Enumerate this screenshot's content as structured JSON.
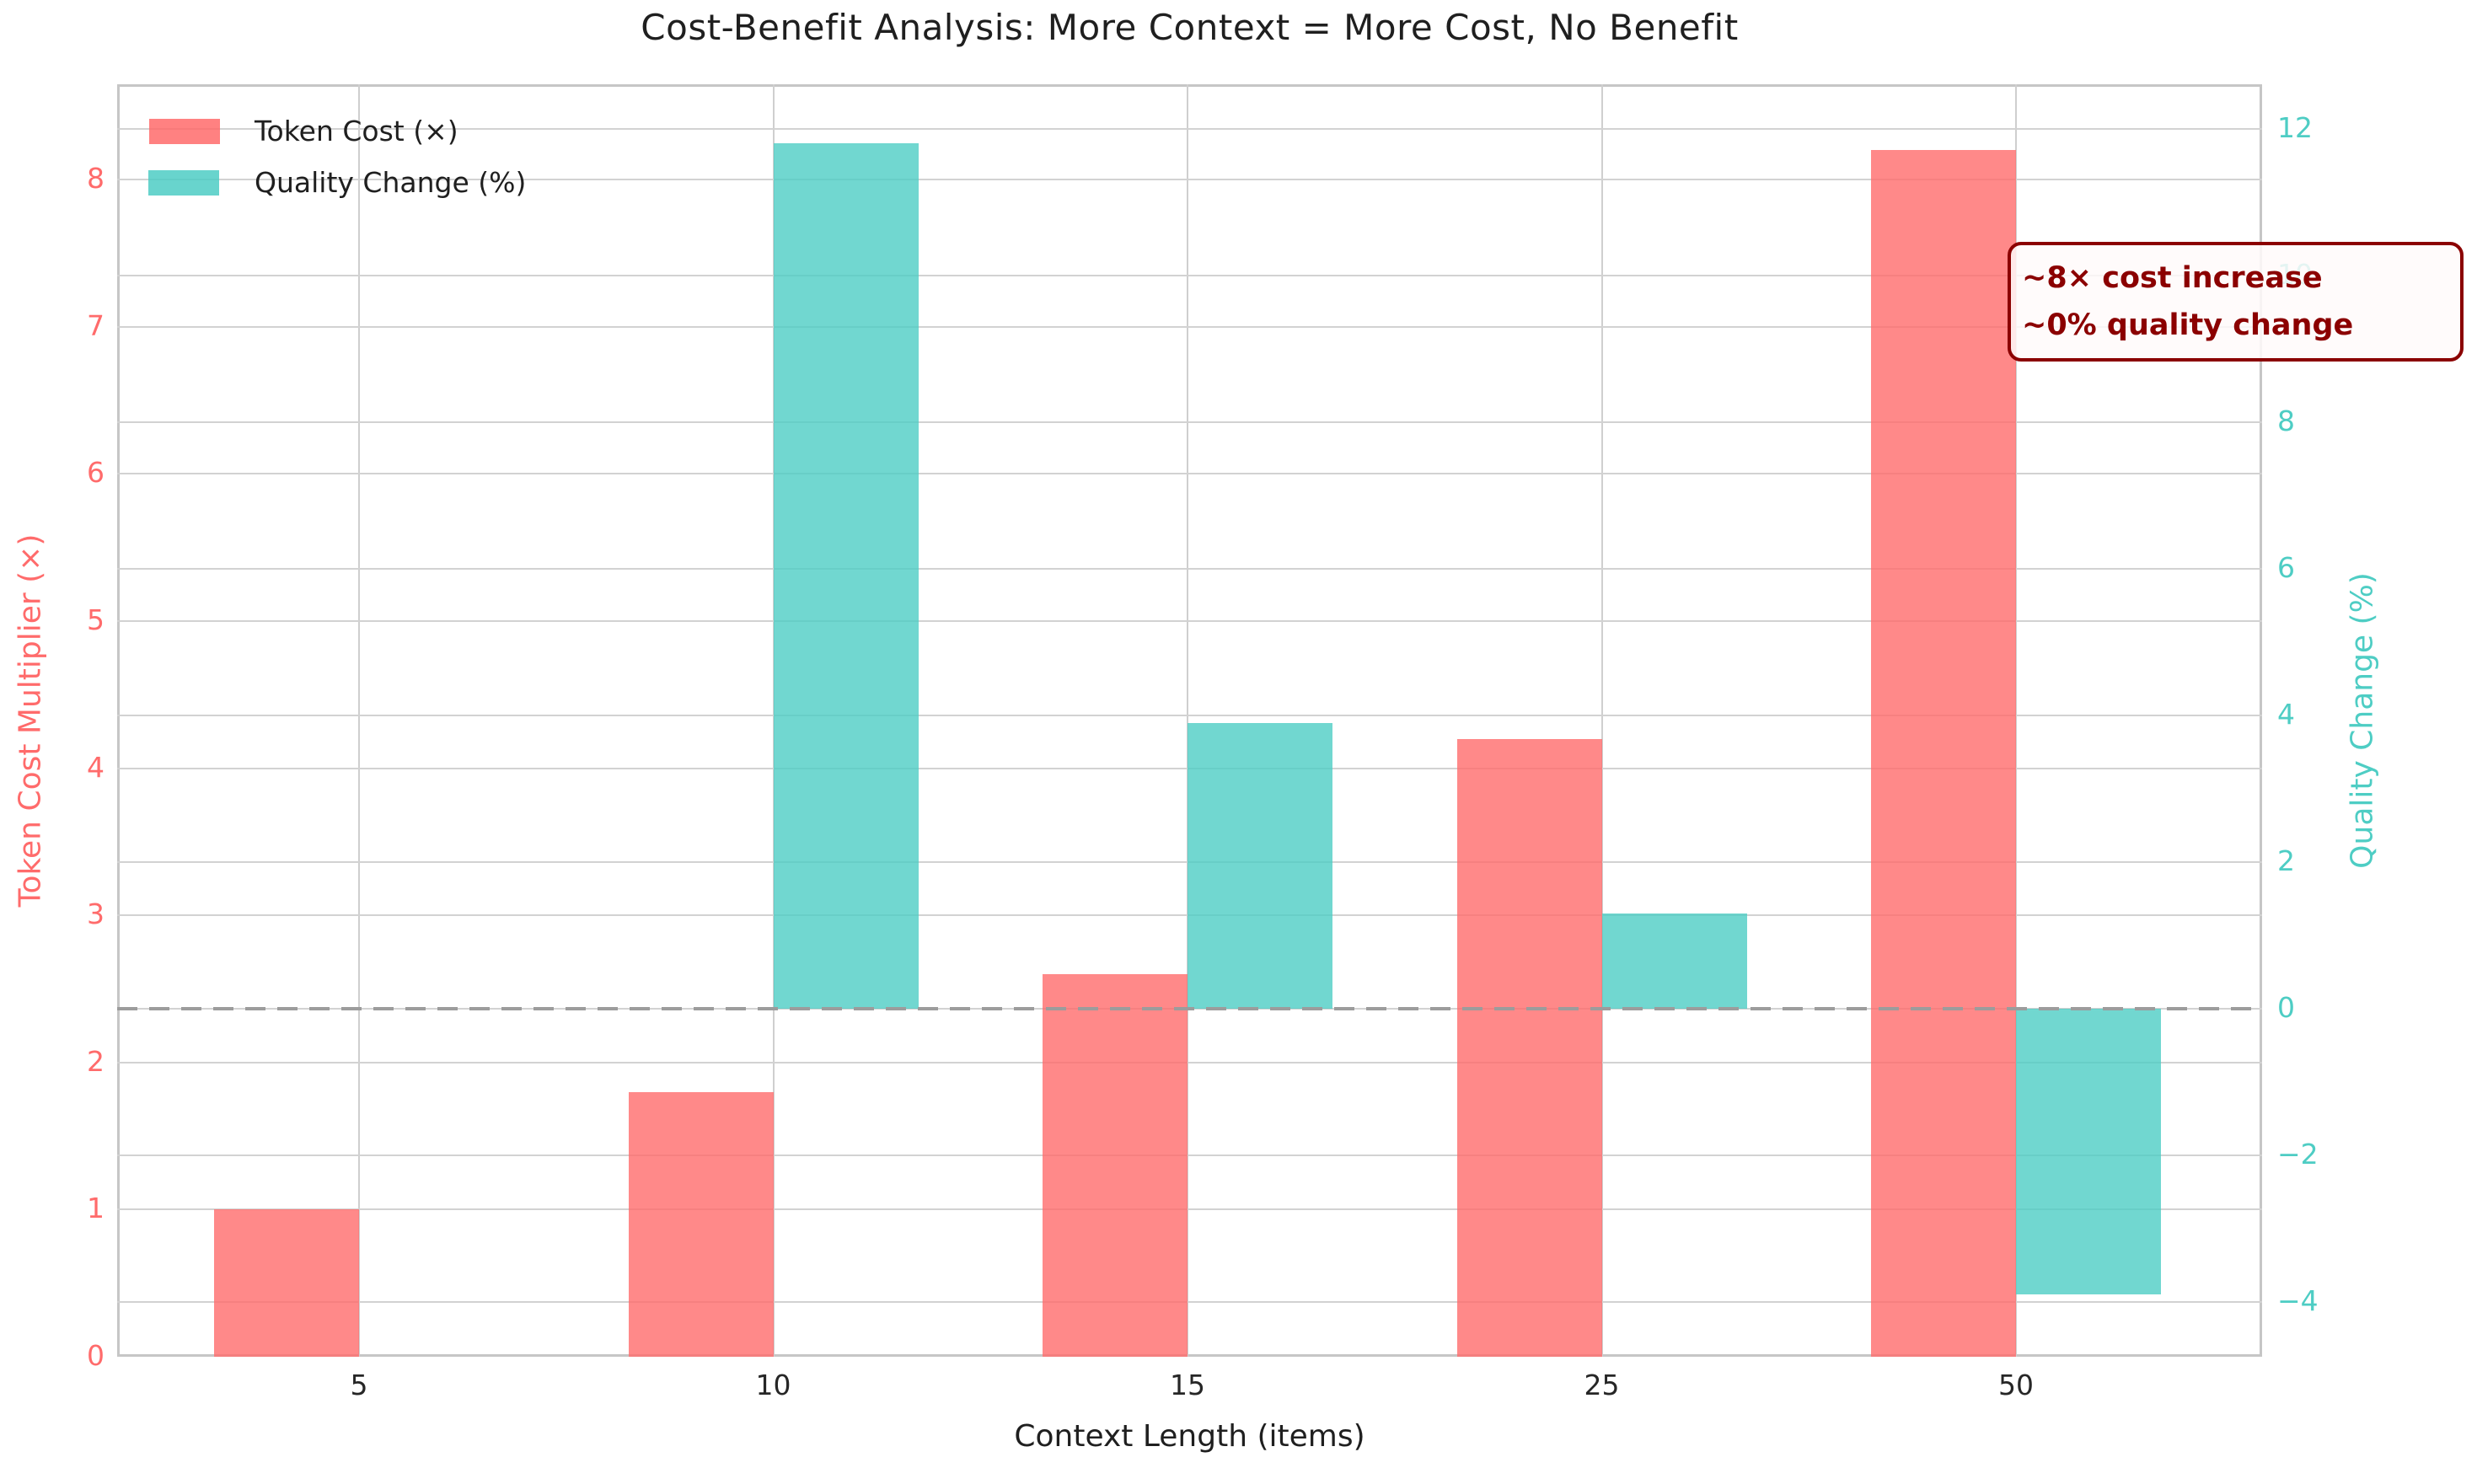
{
  "chart_data": {
    "type": "bar",
    "title": "Cost-Benefit Analysis: More Context = More Cost, No Benefit",
    "xlabel": "Context Length (items)",
    "categories": [
      "5",
      "10",
      "15",
      "25",
      "50"
    ],
    "series": [
      {
        "name": "Token Cost (×)",
        "axis": "left",
        "color": "#FF6B6B",
        "values": [
          1.0,
          1.8,
          2.6,
          4.2,
          8.2
        ]
      },
      {
        "name": "Quality Change (%)",
        "axis": "right",
        "color": "#4ECDC4",
        "values": [
          0,
          11.8,
          3.9,
          1.3,
          -3.9
        ]
      }
    ],
    "left_axis": {
      "label": "Token Cost Multiplier (×)",
      "color": "#FF6B6B",
      "ticks": [
        0,
        1,
        2,
        3,
        4,
        5,
        6,
        7,
        8
      ],
      "range": [
        0,
        8.65
      ]
    },
    "right_axis": {
      "label": "Quality Change (%)",
      "color": "#4ECDC4",
      "ticks": [
        -4,
        -2,
        0,
        2,
        4,
        6,
        8,
        10,
        12
      ],
      "range": [
        -4.75,
        12.6
      ]
    },
    "zero_line": {
      "axis": "right",
      "value": 0,
      "style": "dashed",
      "color": "#9c9c9c"
    },
    "grid": "both",
    "legend_position": "top-left",
    "annotation": {
      "lines": [
        "~8× cost increase",
        "~0% quality change"
      ],
      "text_color": "#8B0000",
      "border_color": "#8B0000"
    }
  }
}
